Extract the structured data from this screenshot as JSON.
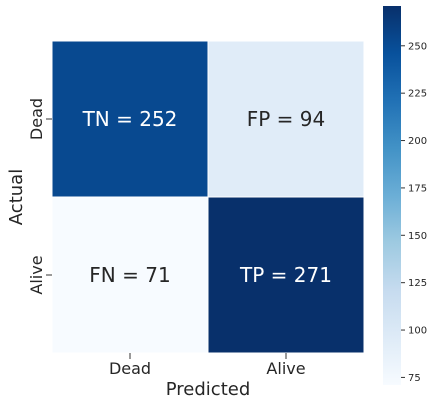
{
  "chart_data": {
    "type": "heatmap",
    "title": "",
    "xlabel": "Predicted",
    "ylabel": "Actual",
    "x_categories": [
      "Dead",
      "Alive"
    ],
    "y_categories": [
      "Dead",
      "Alive"
    ],
    "values": [
      [
        252,
        94
      ],
      [
        71,
        271
      ]
    ],
    "cell_labels": [
      [
        "TN = 252",
        "FP = 94"
      ],
      [
        "FN = 71",
        "TP = 271"
      ]
    ],
    "colormap": "Blues",
    "colorbar": {
      "min": 71,
      "max": 271,
      "ticks": [
        75,
        100,
        125,
        150,
        175,
        200,
        225,
        250
      ]
    },
    "grid": false
  },
  "colors": {
    "darkest": "#08306b",
    "lightest": "#f7fbff",
    "cell_border": "#ffffff"
  }
}
